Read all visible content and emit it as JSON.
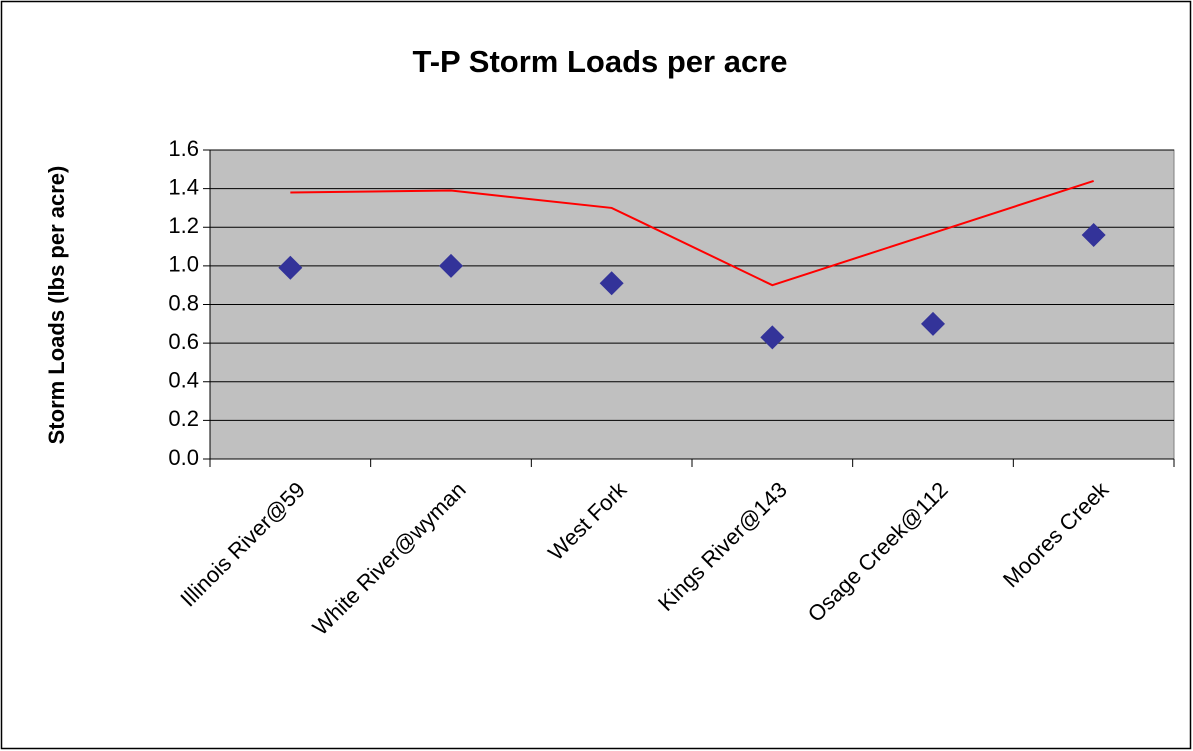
{
  "chart_data": {
    "type": "line",
    "title": "T-P Storm Loads per acre",
    "y_label": "Storm Loads (lbs per acre)",
    "categories": [
      "Illinois River@59",
      "White River@wyman",
      "West Fork",
      "Kings River@143",
      "Osage Creek@112",
      "Moores Creek"
    ],
    "series": [
      {
        "color": "#333399",
        "marker": "diamond",
        "values": [
          0.99,
          1.0,
          0.91,
          0.63,
          0.7,
          1.16
        ]
      },
      {
        "color": "#ff0000",
        "values": [
          1.38,
          1.39,
          1.3,
          0.9,
          1.17,
          1.44
        ]
      }
    ],
    "ylim": [
      0,
      1.6
    ],
    "yticks": [
      {
        "value": 0,
        "label": "0.0"
      },
      0.2,
      0.4,
      0.6,
      0.8,
      {
        "value": 1,
        "label": "1.0"
      },
      1.2,
      1.4,
      1.6
    ],
    "grid": true,
    "plot_background": "#c0c0c0"
  }
}
